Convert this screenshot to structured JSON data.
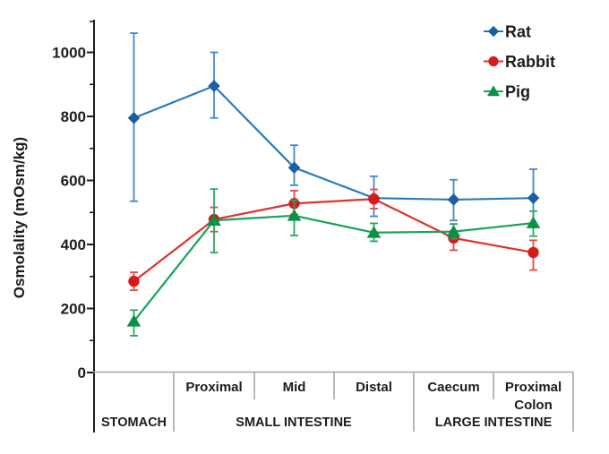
{
  "figure": {
    "background": "#ffffff",
    "text_color": "#1d1d1b",
    "axis_color": "#1d1d1b",
    "table_line_color": "#a6a6a6",
    "units": "mOsm/kg"
  },
  "chart_data": {
    "type": "line",
    "title": "",
    "ylabel": "Osmolality  (mOsm/kg)",
    "xlabel": "",
    "ylim": [
      0,
      1100
    ],
    "yticks": [
      0,
      200,
      400,
      600,
      800,
      1000
    ],
    "yticks_minor": [
      100,
      300,
      500,
      700,
      900,
      1100
    ],
    "grid": false,
    "legend_position": "top-right",
    "categories": [
      "Stomach",
      "Proximal",
      "Mid",
      "Distal",
      "Caecum",
      "Proximal Colon"
    ],
    "x_axis_table": {
      "region_row": [
        [],
        [
          "Proximal"
        ],
        [
          "Mid"
        ],
        [
          "Distal"
        ],
        [
          "Caecum"
        ],
        [
          "Proximal",
          "Colon"
        ]
      ],
      "group_row": [
        {
          "label": "STOMACH",
          "span": [
            0,
            0
          ]
        },
        {
          "label": "SMALL INTESTINE",
          "span": [
            1,
            3
          ]
        },
        {
          "label": "LARGE INTESTINE",
          "span": [
            4,
            5
          ]
        }
      ]
    },
    "series": [
      {
        "name": "Rat",
        "marker": "diamond",
        "color": "#2b7cba",
        "marker_color": "#1b5fa0",
        "error_color": "#4289c6",
        "values": [
          795,
          895,
          640,
          545,
          540,
          545
        ],
        "error_up": [
          265,
          105,
          70,
          68,
          62,
          90
        ],
        "error_down": [
          260,
          100,
          55,
          57,
          65,
          85
        ]
      },
      {
        "name": "Rabbit",
        "marker": "circle",
        "color": "#e03030",
        "marker_color": "#d81a1a",
        "error_color": "#e54848",
        "values": [
          285,
          478,
          528,
          542,
          420,
          375
        ],
        "error_up": [
          28,
          38,
          40,
          30,
          22,
          38
        ],
        "error_down": [
          28,
          38,
          35,
          30,
          38,
          55
        ]
      },
      {
        "name": "Pig",
        "marker": "triangle",
        "color": "#17a35a",
        "marker_color": "#0b9145",
        "error_color": "#2ea565",
        "values": [
          160,
          475,
          490,
          437,
          440,
          467
        ],
        "error_up": [
          35,
          98,
          48,
          29,
          24,
          37
        ],
        "error_down": [
          45,
          100,
          62,
          27,
          22,
          41
        ]
      }
    ]
  }
}
